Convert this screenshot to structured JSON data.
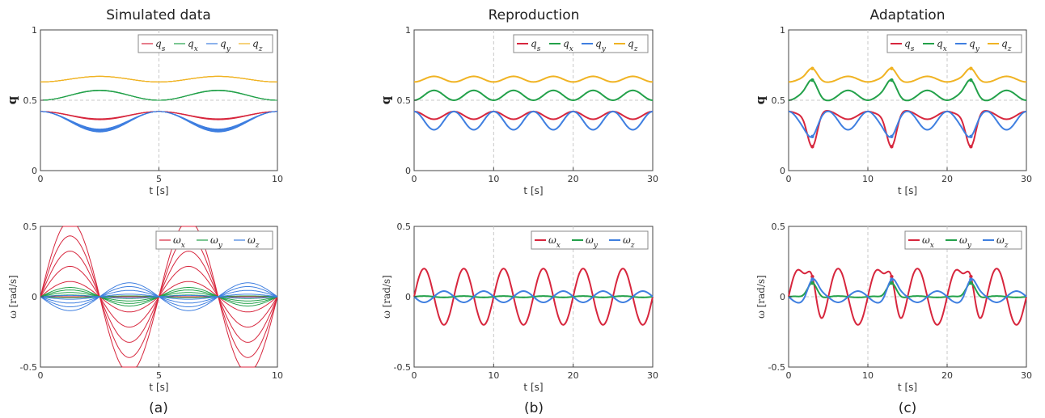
{
  "figure": {
    "columns": [
      {
        "title": "Simulated data",
        "caption": "(a)"
      },
      {
        "title": "Reproduction",
        "caption": "(b)"
      },
      {
        "title": "Adaptation",
        "caption": "(c)"
      }
    ]
  },
  "colors": {
    "red": "#d7263d",
    "green": "#23a14a",
    "blue": "#3f7fe0",
    "yellow": "#f0b323"
  },
  "chart_data": [
    {
      "type": "line",
      "panel": "a-top",
      "title": "Simulated data",
      "xlabel": "t [s]",
      "ylabel": "q",
      "xlim": [
        0,
        10
      ],
      "ylim": [
        0,
        1
      ],
      "xticks": [
        "0",
        "5",
        "10"
      ],
      "yticks": [
        "0",
        "0.5",
        "1"
      ],
      "legend_placement": "top-right",
      "vgrid": [
        5
      ],
      "hgrid": [
        0.5
      ],
      "series": [
        {
          "name": "q_s",
          "color": "#d7263d",
          "base": 0.42,
          "amp": -0.055,
          "period": 5,
          "copies": 6,
          "spread": 0.012,
          "lw": 1
        },
        {
          "name": "q_x",
          "color": "#23a14a",
          "base": 0.5,
          "amp": 0.07,
          "period": 5,
          "copies": 6,
          "spread": 0.005,
          "lw": 1
        },
        {
          "name": "q_y",
          "color": "#3f7fe0",
          "base": 0.42,
          "amp": -0.135,
          "period": 5,
          "copies": 8,
          "spread": 0.011,
          "lw": 1
        },
        {
          "name": "q_z",
          "color": "#f0b323",
          "base": 0.63,
          "amp": 0.04,
          "period": 5,
          "copies": 6,
          "spread": 0.004,
          "lw": 1
        }
      ]
    },
    {
      "type": "line",
      "panel": "a-bottom",
      "xlabel": "t [s]",
      "ylabel": "ω [rad/s]",
      "xlim": [
        0,
        10
      ],
      "ylim": [
        -0.5,
        0.5
      ],
      "xticks": [
        "0",
        "5",
        "10"
      ],
      "yticks": [
        "-0.5",
        "0",
        "0.5"
      ],
      "legend_placement": "top-right",
      "vgrid": [
        5
      ],
      "hgrid": [
        0
      ],
      "series": [
        {
          "name": "ω_x",
          "color": "#d7263d",
          "amp": 0.27,
          "period": 5,
          "copies": 6,
          "spread": 0.2,
          "lw": 1
        },
        {
          "name": "ω_y",
          "color": "#23a14a",
          "amp": 0.03,
          "period": 5,
          "copies": 5,
          "spread": 0.3,
          "lw": 1
        },
        {
          "name": "ω_z",
          "color": "#3f7fe0",
          "amp": -0.045,
          "period": 5,
          "copies": 5,
          "spread": 0.3,
          "lw": 1
        }
      ]
    },
    {
      "type": "line",
      "panel": "b-top",
      "title": "Reproduction",
      "xlabel": "t [s]",
      "ylabel": "q",
      "xlim": [
        0,
        30
      ],
      "ylim": [
        0,
        1
      ],
      "xticks": [
        "0",
        "10",
        "20",
        "30"
      ],
      "yticks": [
        "0",
        "0.5",
        "1"
      ],
      "legend_placement": "top-right",
      "vgrid": [
        10,
        20
      ],
      "hgrid": [
        0.5
      ],
      "series": [
        {
          "name": "q_s",
          "color": "#d7263d",
          "base": 0.42,
          "amp": -0.055,
          "period": 5,
          "lw": 2
        },
        {
          "name": "q_x",
          "color": "#23a14a",
          "base": 0.5,
          "amp": 0.07,
          "period": 5,
          "lw": 2
        },
        {
          "name": "q_y",
          "color": "#3f7fe0",
          "base": 0.42,
          "amp": -0.13,
          "period": 5,
          "lw": 2
        },
        {
          "name": "q_z",
          "color": "#f0b323",
          "base": 0.63,
          "amp": 0.04,
          "period": 5,
          "lw": 2
        }
      ]
    },
    {
      "type": "line",
      "panel": "b-bottom",
      "xlabel": "t [s]",
      "ylabel": "ω [rad/s]",
      "xlim": [
        0,
        30
      ],
      "ylim": [
        -0.5,
        0.5
      ],
      "xticks": [
        "0",
        "10",
        "20",
        "30"
      ],
      "yticks": [
        "-0.5",
        "0",
        "0.5"
      ],
      "legend_placement": "top-right",
      "vgrid": [
        10,
        20
      ],
      "hgrid": [
        0
      ],
      "series": [
        {
          "name": "ω_x",
          "color": "#d7263d",
          "amp": 0.2,
          "period": 5,
          "lw": 2
        },
        {
          "name": "ω_y",
          "color": "#23a14a",
          "amp": 0.005,
          "period": 5,
          "lw": 2
        },
        {
          "name": "ω_z",
          "color": "#3f7fe0",
          "amp": -0.04,
          "period": 5,
          "lw": 2
        }
      ]
    },
    {
      "type": "line",
      "panel": "c-top",
      "title": "Adaptation",
      "xlabel": "t [s]",
      "ylabel": "q",
      "xlim": [
        0,
        30
      ],
      "ylim": [
        0,
        1
      ],
      "xticks": [
        "0",
        "10",
        "20",
        "30"
      ],
      "yticks": [
        "0",
        "0.5",
        "1"
      ],
      "legend_placement": "top-right",
      "vgrid": [
        10,
        20
      ],
      "hgrid": [
        0.5
      ],
      "adapt_times": [
        3,
        13,
        23
      ],
      "series": [
        {
          "name": "q_s",
          "color": "#d7263d",
          "base": 0.42,
          "amp": -0.055,
          "period": 5,
          "bump": -0.2,
          "lw": 2
        },
        {
          "name": "q_x",
          "color": "#23a14a",
          "base": 0.5,
          "amp": 0.07,
          "period": 5,
          "bump": 0.08,
          "lw": 2
        },
        {
          "name": "q_y",
          "color": "#3f7fe0",
          "base": 0.42,
          "amp": -0.13,
          "period": 5,
          "bump": -0.06,
          "lw": 2
        },
        {
          "name": "q_z",
          "color": "#f0b323",
          "base": 0.63,
          "amp": 0.04,
          "period": 5,
          "bump": 0.06,
          "lw": 2
        }
      ]
    },
    {
      "type": "line",
      "panel": "c-bottom",
      "xlabel": "t [s]",
      "ylabel": "ω [rad/s]",
      "xlim": [
        0,
        30
      ],
      "ylim": [
        -0.5,
        0.5
      ],
      "xticks": [
        "0",
        "10",
        "20",
        "30"
      ],
      "yticks": [
        "-0.5",
        "0",
        "0.5"
      ],
      "legend_placement": "top-right",
      "vgrid": [
        10,
        20
      ],
      "hgrid": [
        0
      ],
      "adapt_times": [
        3,
        13,
        23
      ],
      "series": [
        {
          "name": "ω_x",
          "color": "#d7263d",
          "amp": 0.2,
          "period": 5,
          "bump": 0.26,
          "lw": 2
        },
        {
          "name": "ω_y",
          "color": "#23a14a",
          "amp": 0.005,
          "period": 5,
          "bump": 0.1,
          "lw": 2
        },
        {
          "name": "ω_z",
          "color": "#3f7fe0",
          "amp": -0.04,
          "period": 5,
          "bump": 0.1,
          "lw": 2
        }
      ]
    }
  ]
}
